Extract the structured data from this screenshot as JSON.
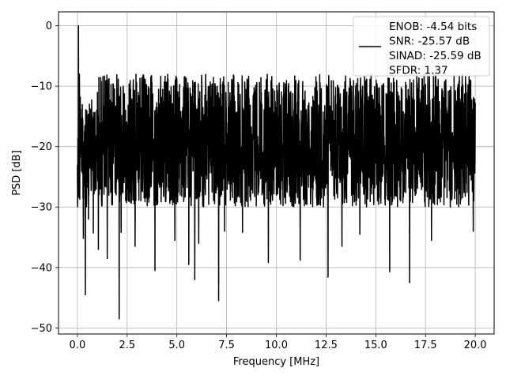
{
  "chart_data": {
    "type": "line",
    "xlabel": "Frequency [MHz]",
    "ylabel": "PSD [dB]",
    "xlim": [
      -0.95,
      20.95
    ],
    "ylim": [
      -51.0,
      2.3
    ],
    "xticks": [
      0.0,
      2.5,
      5.0,
      7.5,
      10.0,
      12.5,
      15.0,
      17.5,
      20.0
    ],
    "xtick_labels": [
      "0.0",
      "2.5",
      "5.0",
      "7.5",
      "10.0",
      "12.5",
      "15.0",
      "17.5",
      "20.0"
    ],
    "yticks": [
      0,
      -10,
      -20,
      -30,
      -40,
      -50
    ],
    "ytick_labels": [
      "0",
      "−10",
      "−20",
      "−30",
      "−40",
      "−50"
    ],
    "grid": true,
    "legend": {
      "placement": "top-right",
      "entries": [
        "ENOB: -4.54 bits",
        "SNR: -25.57 dB",
        "SINAD: -25.59 dB",
        "SFDR: 1.37"
      ]
    },
    "series": [
      {
        "color": "#000000",
        "x_range": [
          0.0,
          20.0
        ],
        "y_floor_approx": -20,
        "peaks": [
          [
            0.05,
            0.0
          ],
          [
            0.1,
            -8.0
          ]
        ],
        "dips": [
          [
            0.3,
            -35.2
          ],
          [
            0.4,
            -44.5
          ],
          [
            0.55,
            -32.0
          ],
          [
            0.8,
            -34.3
          ],
          [
            1.05,
            -37.0
          ],
          [
            1.5,
            -38.5
          ],
          [
            2.1,
            -48.5
          ],
          [
            2.2,
            -34.2
          ],
          [
            2.9,
            -36.5
          ],
          [
            3.9,
            -40.5
          ],
          [
            4.9,
            -35.5
          ],
          [
            5.6,
            -39.5
          ],
          [
            5.9,
            -42.0
          ],
          [
            6.1,
            -36.0
          ],
          [
            7.1,
            -45.5
          ],
          [
            7.4,
            -34.0
          ],
          [
            8.3,
            -34.2
          ],
          [
            9.6,
            -39.2
          ],
          [
            11.2,
            -38.8
          ],
          [
            12.6,
            -41.6
          ],
          [
            13.3,
            -36.5
          ],
          [
            14.2,
            -34.5
          ],
          [
            15.7,
            -40.7
          ],
          [
            16.7,
            -42.5
          ],
          [
            17.8,
            -35.5
          ],
          [
            19.9,
            -34.0
          ]
        ]
      }
    ]
  }
}
